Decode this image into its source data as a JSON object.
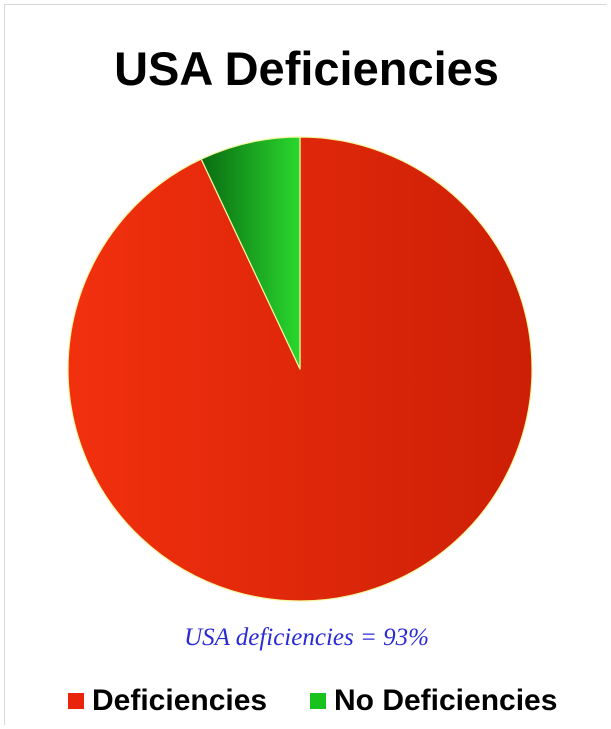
{
  "chart_data": {
    "type": "pie",
    "title": "USA Deficiencies",
    "annotation": "USA deficiencies = 93%",
    "legend_position": "bottom",
    "slices": [
      {
        "label": "Deficiencies",
        "value": 93,
        "color": "#e8250a"
      },
      {
        "label": "No Deficiencies",
        "value": 7,
        "color": "#19c21d"
      }
    ]
  }
}
